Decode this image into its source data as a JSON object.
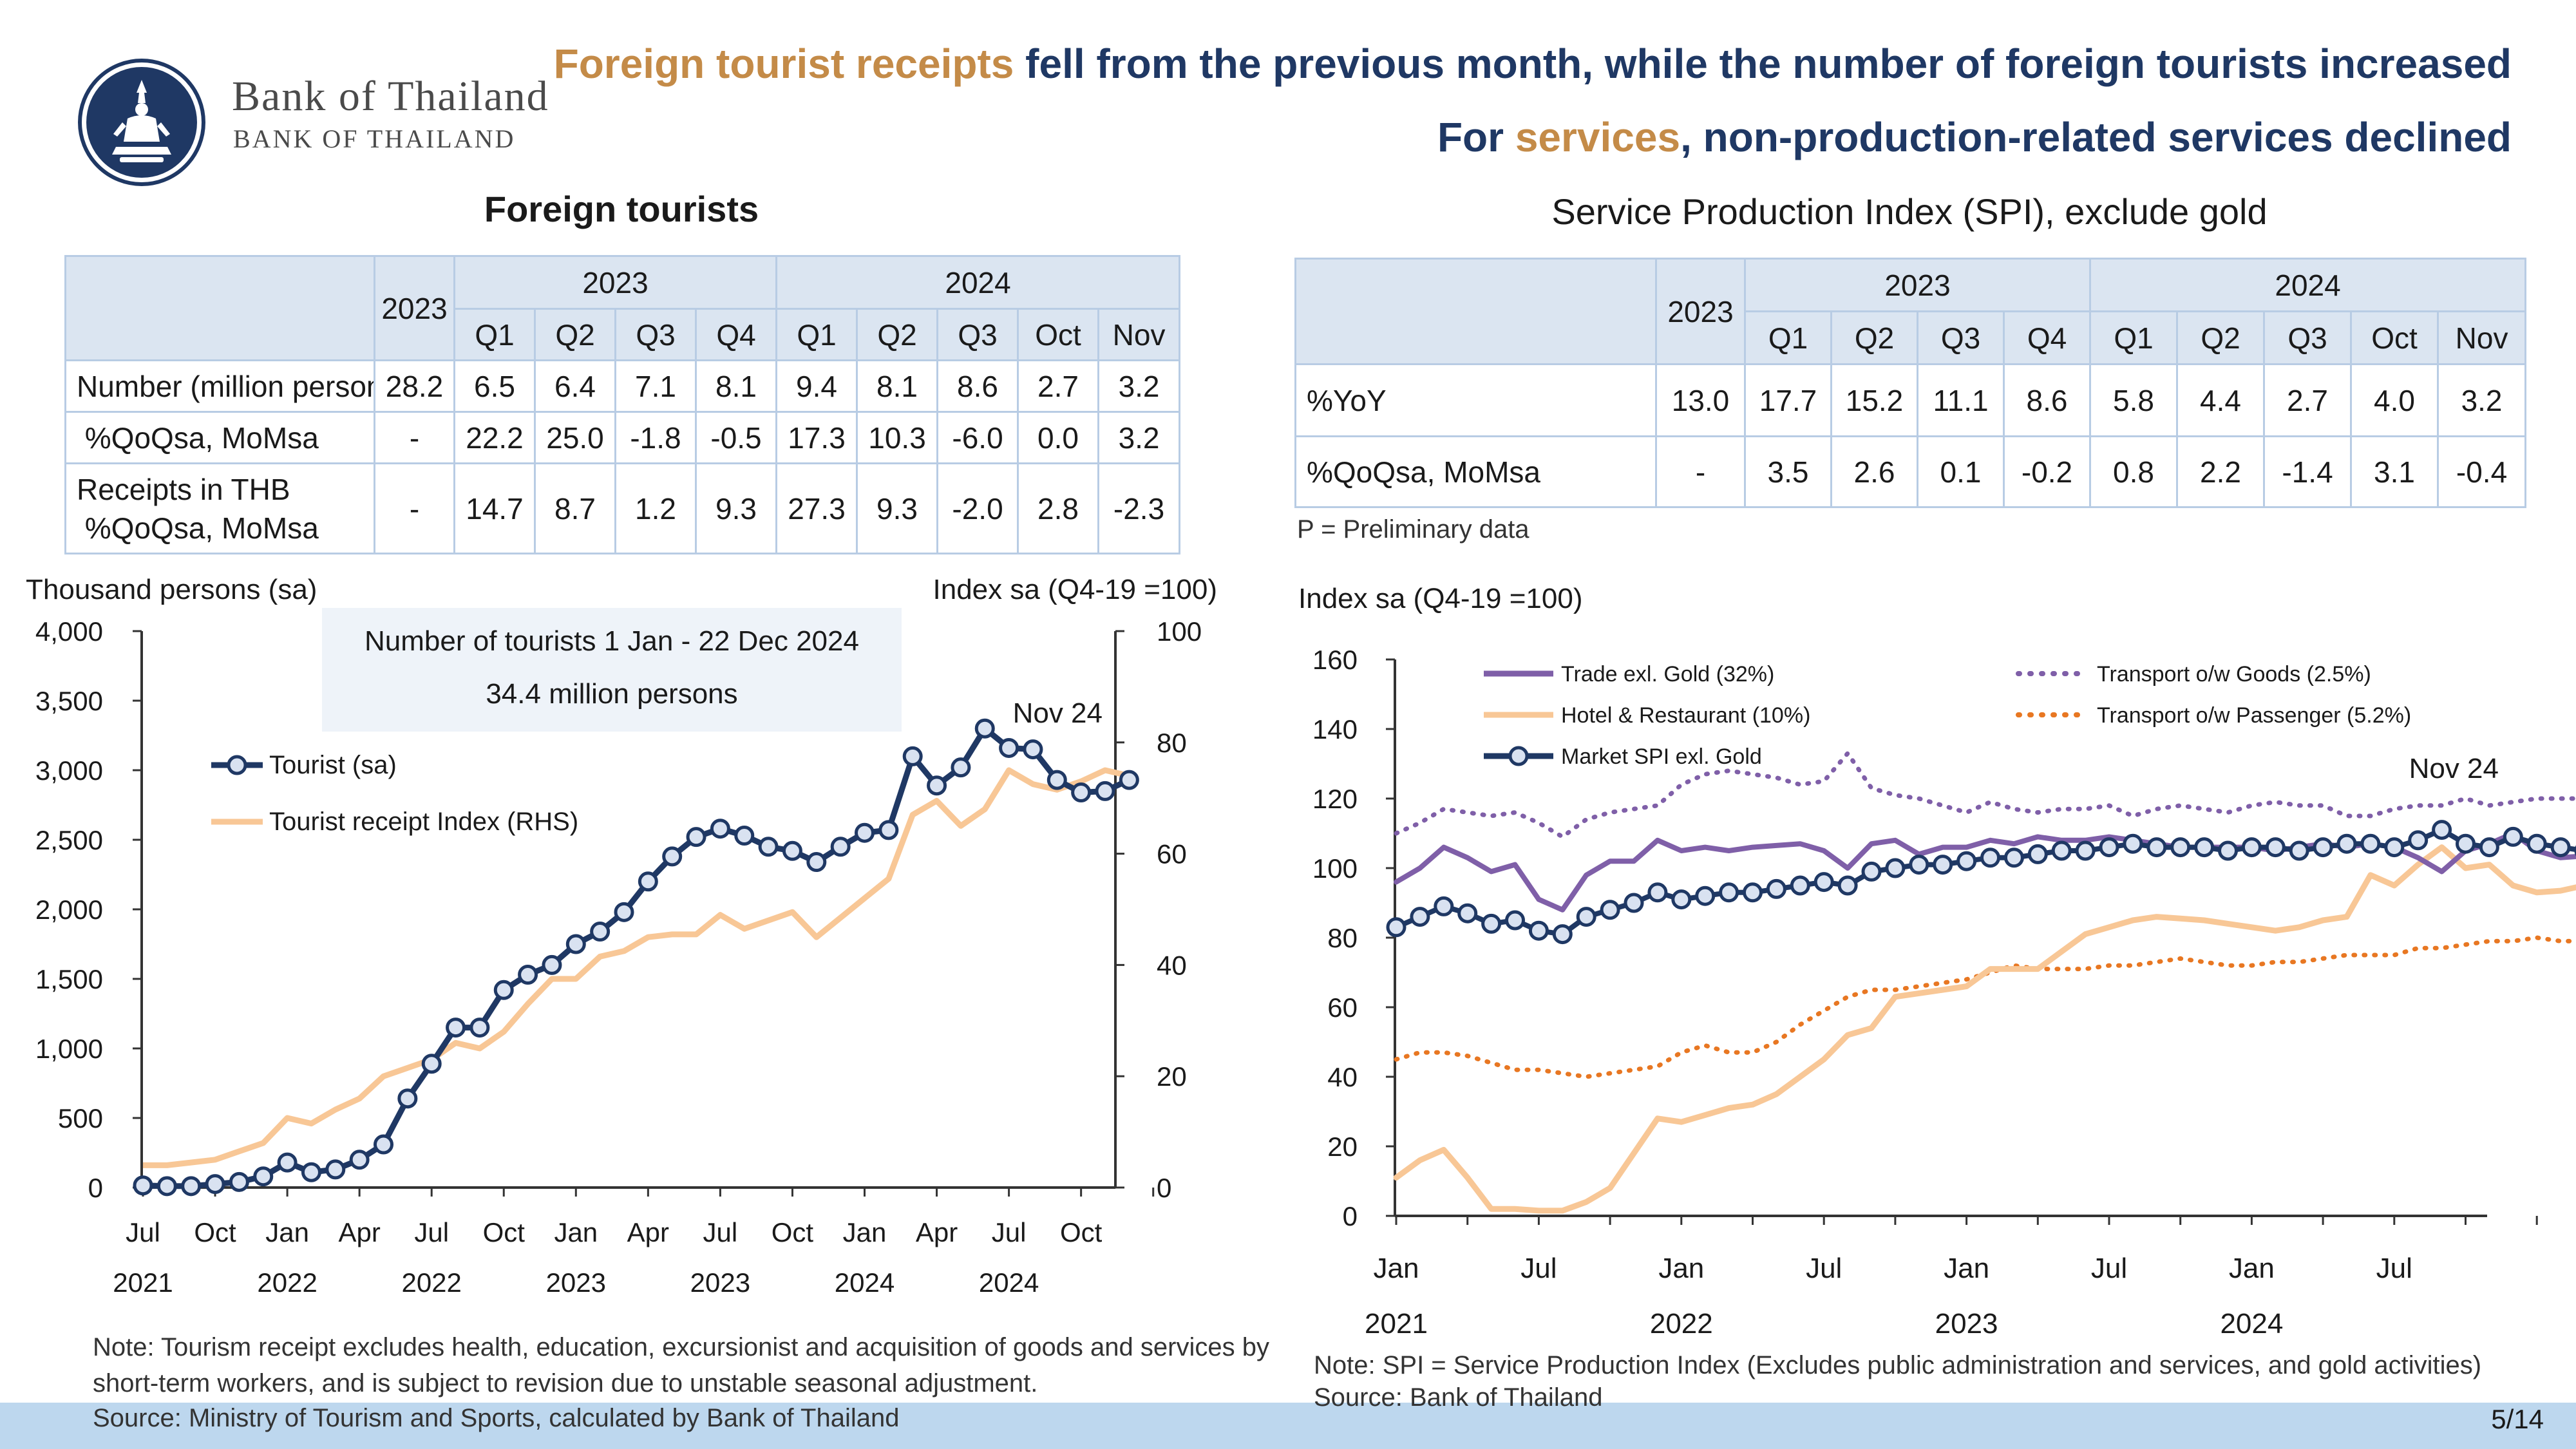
{
  "header": {
    "bank_name_th": "Bank of Thailand",
    "bank_name_en": "BANK OF THAILAND",
    "headline_line1_accent": "Foreign tourist receipts",
    "headline_line1_rest": " fell from the previous month, while the number of foreign tourists increased",
    "headline_line2_start": "For ",
    "headline_line2_accent": "services",
    "headline_line2_rest": ", non-production-related services declined"
  },
  "left_panel": {
    "title": "Foreign tourists",
    "table": {
      "header_2023_single": "2023",
      "group_2023": "2023",
      "group_2024": "2024",
      "columns": [
        "Q1",
        "Q2",
        "Q3",
        "Q4",
        "Q1",
        "Q2",
        "Q3",
        "Oct",
        "Nov"
      ],
      "rows": [
        {
          "label": "Number (million persons)",
          "values": [
            "28.2",
            "6.5",
            "6.4",
            "7.1",
            "8.1",
            "9.4",
            "8.1",
            "8.6",
            "2.7",
            "3.2"
          ]
        },
        {
          "label": " %QoQsa, MoMsa",
          "values": [
            "-",
            "22.2",
            "25.0",
            "-1.8",
            "-0.5",
            "17.3",
            "10.3",
            "-6.0",
            "0.0",
            "3.2"
          ]
        },
        {
          "label_line1": "Receipts in THB",
          "label_line2": " %QoQsa, MoMsa",
          "values": [
            "-",
            "14.7",
            "8.7",
            "1.2",
            "9.3",
            "27.3",
            "9.3",
            "-2.0",
            "2.8",
            "-2.3"
          ]
        }
      ]
    },
    "note": "Note: Tourism receipt excludes health, education, excursionist and acquisition of goods and services by short-term workers, and is subject to revision due to unstable seasonal adjustment.",
    "source": "Source: Ministry of Tourism and Sports, calculated by Bank of Thailand"
  },
  "right_panel": {
    "title": "Service Production Index (SPI), exclude gold",
    "table": {
      "header_2023_single": "2023",
      "group_2023": "2023",
      "group_2024": "2024",
      "columns": [
        "Q1",
        "Q2",
        "Q3",
        "Q4",
        "Q1",
        "Q2",
        "Q3",
        "Oct",
        "Nov"
      ],
      "rows": [
        {
          "label": "%YoY",
          "values": [
            "13.0",
            "17.7",
            "15.2",
            "11.1",
            "8.6",
            "5.8",
            "4.4",
            "2.7",
            "4.0",
            "3.2"
          ]
        },
        {
          "label": "%QoQsa, MoMsa",
          "values": [
            "-",
            "3.5",
            "2.6",
            "0.1",
            "-0.2",
            "0.8",
            "2.2",
            "-1.4",
            "3.1",
            "-0.4"
          ]
        }
      ]
    },
    "prelim_note": "P = Preliminary data",
    "note": "Note: SPI = Service Production Index (Excludes public administration and services, and gold activities)",
    "source": "Source: Bank of Thailand"
  },
  "page_number": "5/14",
  "colors": {
    "navy": "#1f3864",
    "accent": "#c48b48",
    "peach": "#f8c796",
    "purple": "#7f5fa8",
    "orange": "#e87722",
    "table_header": "#dbe5f1",
    "table_border": "#b8cce4",
    "footer": "#bdd7ee"
  },
  "chart_data": [
    {
      "type": "line",
      "title": "",
      "ylabel": "Thousand persons (sa)",
      "y2label": "Index sa (Q4-19 =100)",
      "ylim": [
        0,
        4000
      ],
      "yticks": [
        "0",
        "500",
        "1,000",
        "1,500",
        "2,000",
        "2,500",
        "3,000",
        "3,500",
        "4,000"
      ],
      "y2lim": [
        0,
        100
      ],
      "y2ticks": [
        "0",
        "20",
        "40",
        "60",
        "80",
        "100"
      ],
      "xtick_months": [
        "Jul",
        "Oct",
        "Jan",
        "Apr",
        "Jul",
        "Oct",
        "Jan",
        "Apr",
        "Jul",
        "Oct",
        "Jan",
        "Apr",
        "Jul",
        "Oct"
      ],
      "xtick_years": [
        "2021",
        "2022",
        "2022",
        "2023",
        "2023",
        "2024",
        "2024"
      ],
      "annotation_box_line1": "Number of tourists 1 Jan - 22 Dec 2024",
      "annotation_box_line2": "34.4 million persons",
      "end_label": "Nov 24",
      "x_start": "2021-07",
      "series": [
        {
          "name": "Tourist (sa)",
          "axis": "left",
          "values": [
            15,
            10,
            10,
            25,
            40,
            80,
            180,
            110,
            130,
            200,
            310,
            640,
            890,
            1150,
            1150,
            1420,
            1530,
            1600,
            1750,
            1840,
            1980,
            2200,
            2380,
            2520,
            2580,
            2530,
            2450,
            2420,
            2340,
            2450,
            2550,
            2570,
            3100,
            2890,
            3020,
            3300,
            3160,
            3150,
            2930,
            2840,
            2850,
            2930
          ]
        },
        {
          "name": "Tourist receipt Index (RHS)",
          "axis": "right",
          "values": [
            4,
            4,
            4.5,
            5,
            6.5,
            8,
            12.5,
            11.5,
            14,
            16,
            20,
            21.5,
            23,
            26,
            25,
            28,
            33,
            37.5,
            37.5,
            41.5,
            42.5,
            45,
            45.5,
            45.5,
            49,
            46.5,
            48,
            49.5,
            45,
            48.5,
            52,
            55.5,
            67,
            69.5,
            65,
            68,
            75,
            72.5,
            71.5,
            73,
            75,
            74
          ]
        }
      ]
    },
    {
      "type": "line",
      "title": "",
      "ylabel": "Index sa (Q4-19 =100)",
      "ylim": [
        0,
        160
      ],
      "yticks": [
        "0",
        "20",
        "40",
        "60",
        "80",
        "100",
        "120",
        "140",
        "160"
      ],
      "xtick_months": [
        "Jan",
        "Jul",
        "Jan",
        "Jul",
        "Jan",
        "Jul",
        "Jan",
        "Jul"
      ],
      "xtick_years": [
        "2021",
        "2022",
        "2023",
        "2024"
      ],
      "end_label": "Nov 24",
      "x_start": "2021-01",
      "series": [
        {
          "name": "Trade exl. Gold (32%)",
          "style": "solid-purple",
          "values": [
            96,
            100,
            106,
            103,
            99,
            101,
            91,
            88,
            98,
            102,
            102,
            108,
            105,
            106,
            105,
            106,
            106.5,
            107,
            105,
            100,
            107,
            108,
            104,
            106,
            106,
            108,
            107,
            109,
            108,
            108,
            109,
            108,
            107,
            106,
            106,
            106,
            106,
            105,
            106,
            107,
            106,
            107,
            106,
            103,
            99,
            105,
            107,
            110,
            105,
            103,
            103.5,
            102,
            107,
            104
          ]
        },
        {
          "name": "Hotel & Restaurant (10%)",
          "style": "solid-peach",
          "values": [
            11,
            16,
            19,
            11,
            2,
            2,
            1.5,
            1.5,
            4,
            8,
            18,
            28,
            27,
            29,
            31,
            32,
            35,
            40,
            45,
            52,
            54,
            63,
            64,
            65,
            66,
            71,
            71,
            71,
            76,
            81,
            83,
            85,
            86,
            85.5,
            85,
            84,
            83,
            82,
            83,
            85,
            86,
            98,
            95,
            101,
            106,
            100,
            101,
            95,
            93,
            93.5,
            95
          ]
        },
        {
          "name": "Market SPI exl. Gold",
          "style": "solid-navy-markers",
          "values": [
            83,
            86,
            89,
            87,
            84,
            85,
            82,
            81,
            86,
            88,
            90,
            93,
            91,
            92,
            93,
            93,
            94,
            95,
            96,
            95,
            99,
            100,
            101,
            101,
            102,
            103,
            103,
            104,
            105,
            105,
            106,
            107,
            106,
            106,
            106,
            105,
            106,
            106,
            105,
            106,
            107,
            107,
            106,
            108,
            111,
            107,
            106,
            109,
            107,
            106,
            105,
            108,
            108
          ]
        },
        {
          "name": "Transport o/w Goods (2.5%)",
          "style": "dotted-purple",
          "values": [
            110,
            113,
            117,
            116,
            115,
            116,
            113,
            109,
            114,
            116,
            117,
            118,
            124,
            127,
            128,
            127,
            126,
            124,
            125,
            133,
            123,
            121,
            120,
            118,
            116,
            119,
            117,
            116,
            117,
            117,
            118,
            115,
            117,
            118,
            117,
            116,
            118,
            119,
            118,
            118,
            115,
            115,
            117,
            118,
            118,
            120,
            118,
            119,
            120,
            120,
            120,
            119,
            118
          ]
        },
        {
          "name": "Transport o/w Passenger (5.2%)",
          "style": "dotted-orange",
          "values": [
            45,
            47,
            47,
            46,
            44,
            42,
            42,
            41,
            40,
            41,
            42,
            43,
            47,
            49,
            47,
            47,
            50,
            55,
            59,
            63,
            65,
            65,
            66,
            67,
            68,
            70,
            72,
            71,
            71,
            71,
            72,
            72,
            73,
            74,
            73,
            72,
            72,
            73,
            73,
            74,
            75,
            75,
            75,
            77,
            77,
            78,
            79,
            79,
            80,
            79,
            79,
            80,
            81,
            83
          ]
        }
      ]
    }
  ]
}
